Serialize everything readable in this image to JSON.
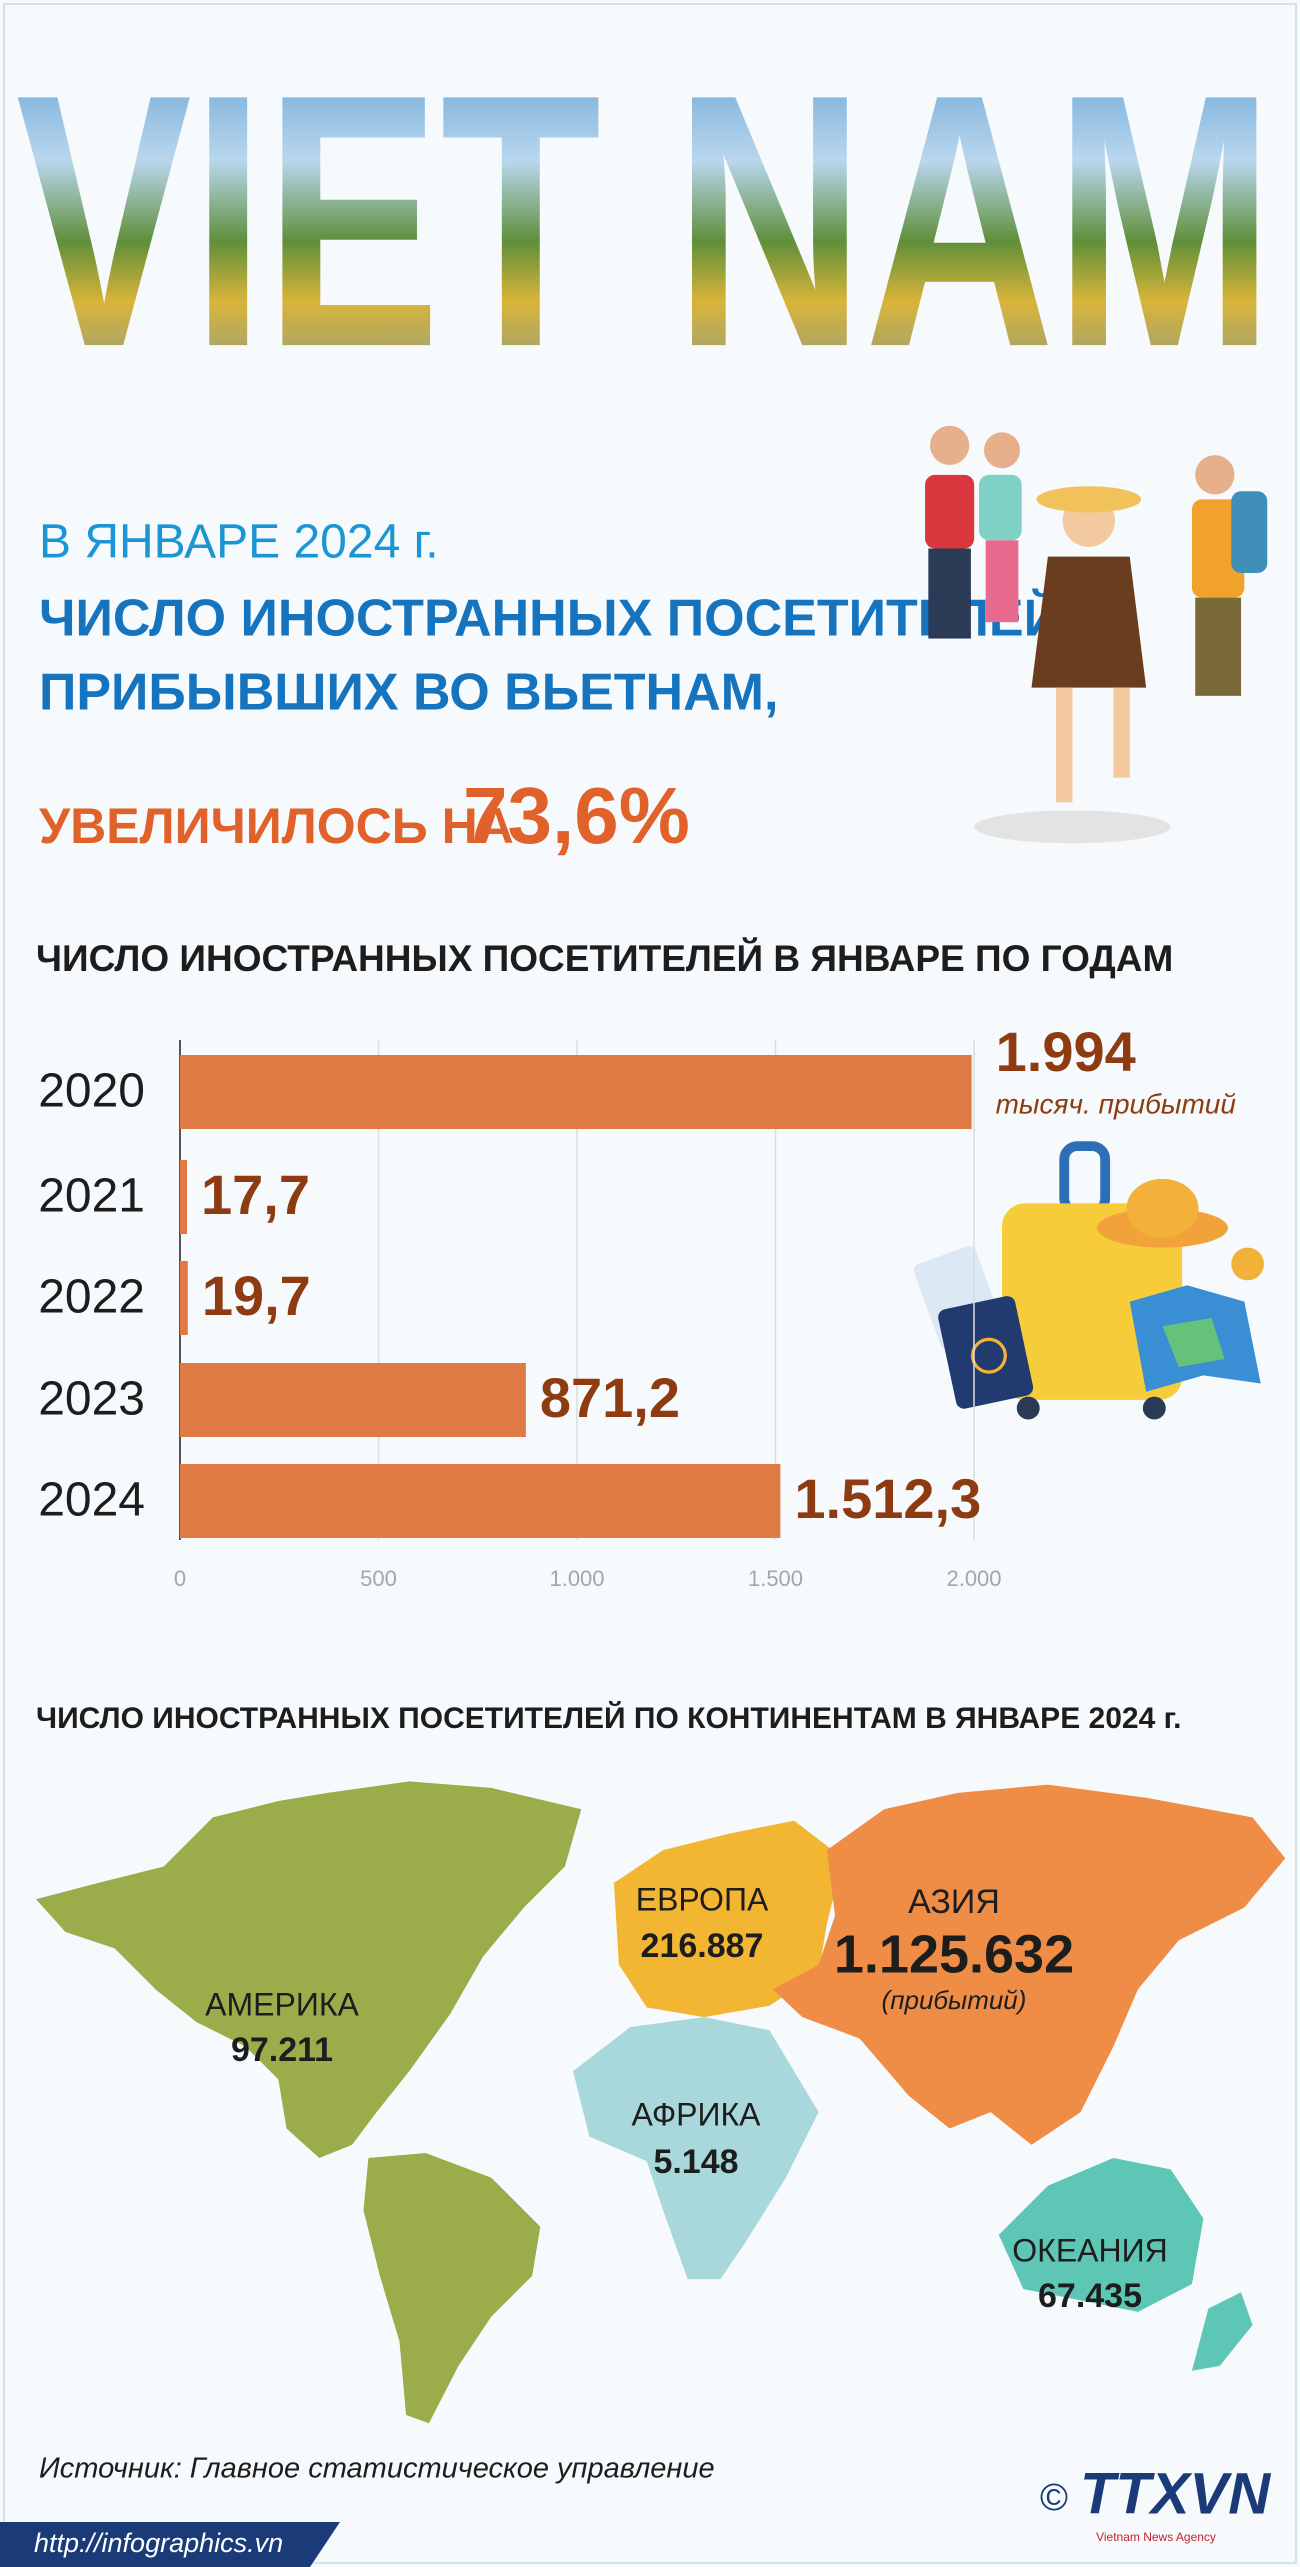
{
  "header": {
    "title": "VIET NAM",
    "period": "В ЯНВАРЕ 2024 г.",
    "line1": "ЧИСЛО ИНОСТРАННЫХ ПОСЕТИТЕЛЕЙ,",
    "line2": "ПРИБЫВШИХ  ВО ВЬЕТНАМ,",
    "increase_text": "УВЕЛИЧИЛОСЬ НА",
    "increase_value": "73,6%"
  },
  "chart_data": {
    "type": "bar",
    "orientation": "horizontal",
    "title": "ЧИСЛО ИНОСТРАННЫХ ПОСЕТИТЕЛЕЙ В ЯНВАРЕ ПО ГОДАМ",
    "categories": [
      "2020",
      "2021",
      "2022",
      "2023",
      "2024"
    ],
    "values": [
      1994,
      17.7,
      19.7,
      871.2,
      1512.3
    ],
    "value_labels": [
      "1.994",
      "17,7",
      "19,7",
      "871,2",
      "1.512,3"
    ],
    "annotation": "тысяч. прибытий",
    "color": "#e07a45",
    "label_color": "#8e3b12",
    "xlim": [
      0,
      2000
    ],
    "xticks": [
      0,
      500,
      {
        "value": 1000,
        "label": "1.000"
      },
      {
        "value": 1500,
        "label": "1.500"
      },
      {
        "value": 2000,
        "label": "2.000"
      }
    ],
    "grid": true
  },
  "map": {
    "title": "ЧИСЛО ИНОСТРАННЫХ ПОСЕТИТЕЛЕЙ ПО КОНТИНЕНТАМ В ЯНВАРЕ 2024 г.",
    "regions": [
      {
        "name": "АМЕРИКА",
        "value": "97.211"
      },
      {
        "name": "ЕВРОПА",
        "value": "216.887"
      },
      {
        "name": "АЗИЯ",
        "value": "1.125.632",
        "note": "(прибытий)"
      },
      {
        "name": "АФРИКА",
        "value": "5.148"
      },
      {
        "name": "ОКЕАНИЯ",
        "value": "67.435"
      }
    ]
  },
  "footer": {
    "source": "Источник: Главное статистическое управление",
    "url": "http://infographics.vn",
    "copyright": "©",
    "logo": "TTXVN",
    "agency": "Vietnam News Agency"
  }
}
